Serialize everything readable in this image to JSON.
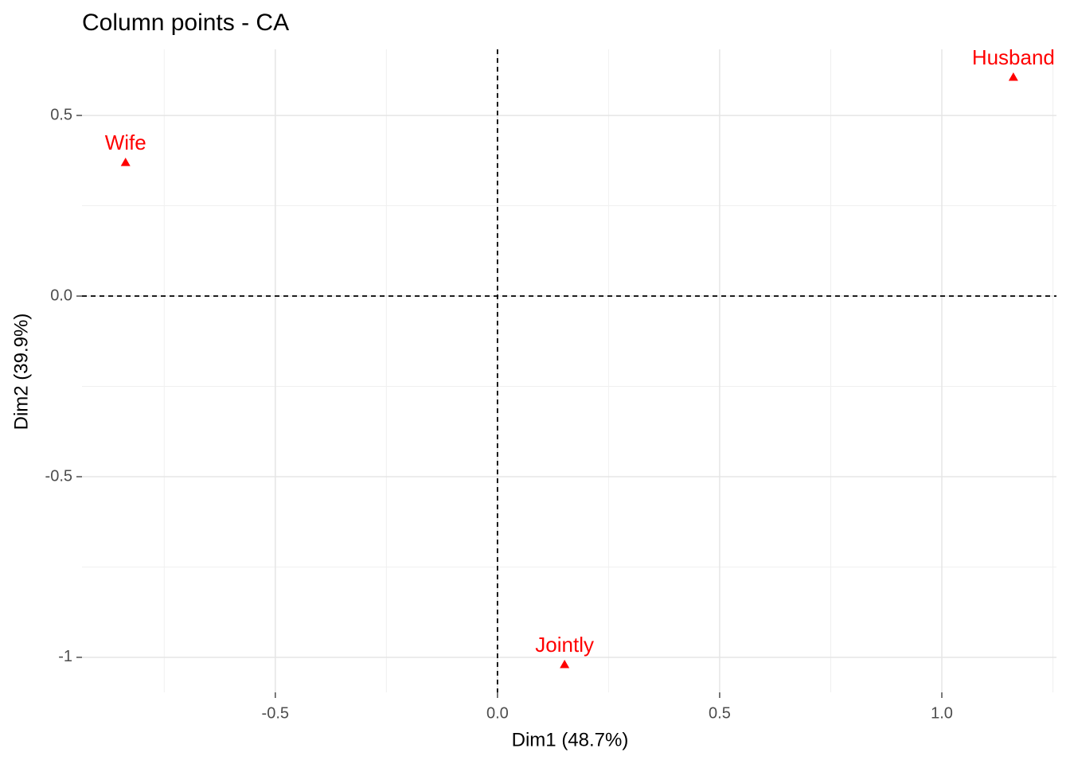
{
  "chart_data": {
    "type": "scatter",
    "title": "Column points - CA",
    "x_label": "Dim1 (48.7%)",
    "y_label": "Dim2 (39.9%)",
    "labels": [
      "Wife",
      "Husband",
      "Jointly"
    ],
    "x": [
      -0.837,
      1.161,
      0.151
    ],
    "values": [
      0.37,
      0.606,
      -1.02
    ],
    "color": "#ff0000",
    "marker": "triangle",
    "xlim": [
      -0.935,
      1.258
    ],
    "ylim": [
      -1.097,
      0.683
    ],
    "xticks": [
      -0.5,
      {
        "value": 0,
        "label": "0.0"
      },
      0.5,
      {
        "value": 1,
        "label": "1.0"
      }
    ],
    "yticks": [
      -1,
      -0.5,
      {
        "value": 0,
        "label": "0.0"
      },
      0.5
    ],
    "yticks_labels_note_free": null,
    "x_minor_grid": [
      -0.75,
      -0.25,
      0.25,
      0.75,
      1.25
    ],
    "y_minor_grid": [
      -0.75,
      -0.25,
      0.25
    ],
    "hline": 0,
    "vline": 0,
    "grid": true
  }
}
